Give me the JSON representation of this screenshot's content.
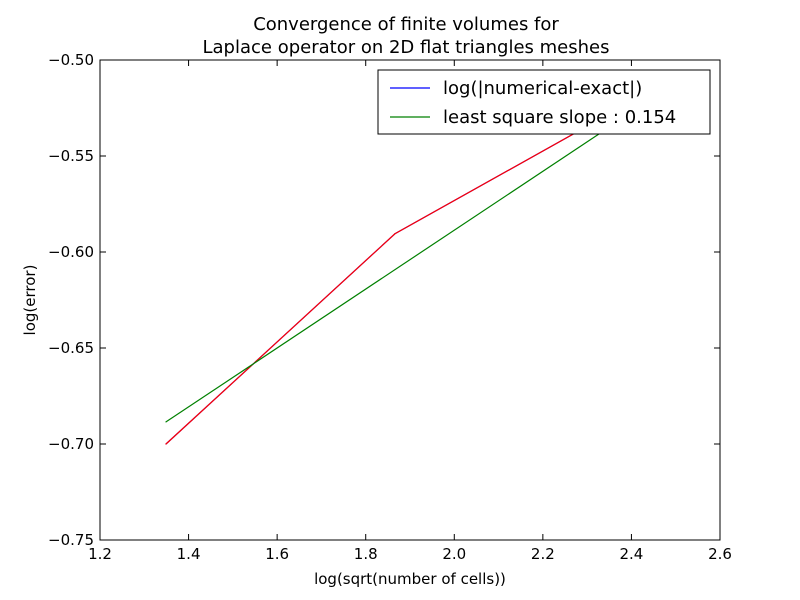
{
  "chart_data": {
    "type": "line",
    "title_lines": [
      "Convergence of finite volumes for",
      "Laplace operator on 2D flat triangles meshes"
    ],
    "xlabel": "log(sqrt(number of cells))",
    "ylabel": "log(error)",
    "xlim": [
      1.2,
      2.6
    ],
    "ylim": [
      -0.75,
      -0.5
    ],
    "xticks": [
      1.2,
      1.4,
      1.6,
      1.8,
      2.0,
      2.2,
      2.4,
      2.6
    ],
    "yticks": [
      -0.75,
      -0.7,
      -0.65,
      -0.6,
      -0.55,
      -0.5
    ],
    "xtick_labels": [
      "1.2",
      "1.4",
      "1.6",
      "1.8",
      "2.0",
      "2.2",
      "2.4",
      "2.6"
    ],
    "ytick_labels": [
      "−0.75",
      "−0.70",
      "−0.65",
      "−0.60",
      "−0.55",
      "−0.50"
    ],
    "grid": false,
    "legend_position": "top-right",
    "series": [
      {
        "name": "log(|numerical-exact|)",
        "color": "#0000ff",
        "x": [
          1.349,
          1.866,
          2.366
        ],
        "y": [
          -0.7,
          -0.5905,
          -0.526
        ]
      },
      {
        "name": "red overlay",
        "color": "#ff0000",
        "in_legend": false,
        "x": [
          1.349,
          1.866,
          2.366
        ],
        "y": [
          -0.7,
          -0.5905,
          -0.526
        ]
      },
      {
        "name": "least square slope : 0.154",
        "color": "#008000",
        "x": [
          1.349,
          2.366
        ],
        "y": [
          -0.6885,
          -0.5325
        ]
      }
    ]
  }
}
